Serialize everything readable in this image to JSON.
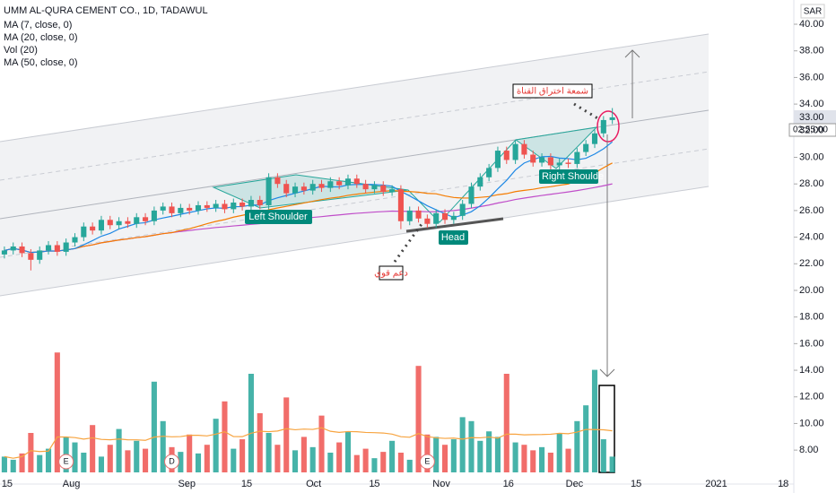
{
  "chart_data": {
    "type": "candlestick",
    "title": "UMM AL-QURA CEMENT CO., 1D, TADAWUL",
    "indicators": [
      "MA (7, close, 0)",
      "MA (20, close, 0)",
      "Vol (20)",
      "MA (50, close, 0)"
    ],
    "currency": "SAR",
    "last_price_label": "33.00",
    "countdown": "02:55:00",
    "annotations": [
      "Left Shoulder",
      "Head",
      "Right Shoulde",
      "شمعة اختراق القناة",
      "دعم قوي"
    ],
    "events": [
      {
        "label": "E",
        "x": 7
      },
      {
        "label": "D",
        "x": 19
      },
      {
        "label": "E",
        "x": 48
      }
    ],
    "up_color": "#26a69a",
    "down_color": "#ef5350",
    "xlim": [
      -0.5,
      89.5
    ],
    "xticks": [
      {
        "value": 0.3,
        "label": "15"
      },
      {
        "value": 7.6,
        "label": "Aug"
      },
      {
        "value": 20.7,
        "label": "Sep"
      },
      {
        "value": 27.5,
        "label": "15"
      },
      {
        "value": 35.1,
        "label": "Oct"
      },
      {
        "value": 42,
        "label": "15"
      },
      {
        "value": 49.6,
        "label": "Nov"
      },
      {
        "value": 57.2,
        "label": "16"
      },
      {
        "value": 64.7,
        "label": "Dec"
      },
      {
        "value": 71.7,
        "label": "15"
      },
      {
        "value": 80.8,
        "label": "2021"
      },
      {
        "value": 88.4,
        "label": "18"
      }
    ],
    "ylim": [
      5.45,
      41.82
    ],
    "yticks": [
      {
        "value": 8,
        "label": "8.00"
      },
      {
        "value": 10,
        "label": "10.00"
      },
      {
        "value": 12,
        "label": "12.00"
      },
      {
        "value": 14,
        "label": "14.00"
      },
      {
        "value": 16,
        "label": "16.00"
      },
      {
        "value": 18,
        "label": "18.00"
      },
      {
        "value": 20,
        "label": "20.00"
      },
      {
        "value": 22,
        "label": "22.00"
      },
      {
        "value": 24,
        "label": "24.00"
      },
      {
        "value": 26,
        "label": "26.00"
      },
      {
        "value": 28,
        "label": "28.00"
      },
      {
        "value": 30,
        "label": "30.00"
      },
      {
        "value": 32,
        "label": "32.00"
      },
      {
        "value": 34,
        "label": "34.00"
      },
      {
        "value": 36,
        "label": "36.00"
      },
      {
        "value": 38,
        "label": "38.00"
      },
      {
        "value": 40,
        "label": "40.00"
      }
    ],
    "open": [
      22.7,
      23.0,
      23.3,
      22.8,
      22.3,
      23.0,
      23.4,
      22.9,
      23.6,
      24.0,
      24.8,
      24.5,
      25.3,
      24.9,
      25.2,
      25.0,
      25.5,
      25.2,
      26.0,
      26.3,
      25.8,
      26.2,
      26.0,
      26.4,
      26.2,
      26.5,
      26.1,
      26.6,
      26.3,
      26.8,
      26.4,
      28.5,
      28.0,
      27.3,
      27.8,
      27.5,
      28.0,
      27.7,
      28.2,
      27.9,
      28.4,
      28.0,
      27.6,
      27.9,
      27.4,
      27.6,
      25.2,
      26.0,
      25.4,
      25.0,
      25.8,
      25.3,
      25.6,
      26.5,
      27.8,
      28.5,
      29.2,
      30.5,
      29.8,
      31.0,
      30.2,
      29.6,
      30.0,
      29.4,
      29.6,
      29.5,
      30.4,
      31.0,
      31.8,
      32.8
    ],
    "high": [
      23.3,
      23.6,
      23.6,
      23.1,
      23.3,
      23.7,
      23.7,
      23.9,
      24.3,
      25.1,
      25.1,
      25.6,
      25.6,
      25.5,
      25.5,
      25.8,
      25.8,
      26.3,
      26.6,
      26.6,
      26.5,
      26.5,
      26.7,
      26.7,
      26.8,
      26.8,
      26.9,
      26.9,
      27.1,
      27.1,
      28.8,
      28.8,
      28.3,
      28.1,
      28.1,
      28.3,
      28.3,
      28.5,
      28.5,
      28.7,
      28.7,
      28.3,
      28.2,
      28.2,
      27.9,
      27.9,
      26.3,
      26.3,
      25.7,
      26.1,
      26.1,
      25.9,
      26.8,
      28.1,
      28.8,
      29.5,
      30.8,
      30.8,
      31.3,
      31.3,
      30.5,
      30.3,
      30.3,
      29.9,
      29.9,
      30.7,
      31.3,
      32.1,
      33.1,
      33.7
    ],
    "low": [
      22.4,
      22.7,
      22.5,
      21.5,
      22.0,
      22.7,
      22.6,
      22.6,
      23.3,
      23.7,
      24.2,
      24.2,
      24.6,
      24.6,
      24.7,
      24.7,
      24.9,
      24.9,
      25.7,
      25.5,
      25.5,
      25.7,
      25.7,
      25.9,
      25.9,
      25.8,
      25.8,
      26.0,
      26.0,
      26.1,
      26.1,
      27.7,
      27.0,
      27.0,
      27.2,
      27.2,
      27.4,
      27.4,
      27.6,
      27.6,
      27.7,
      27.3,
      27.3,
      27.1,
      27.1,
      24.6,
      24.9,
      25.1,
      24.7,
      24.7,
      25.0,
      25.0,
      25.3,
      26.2,
      27.5,
      28.2,
      28.9,
      29.5,
      29.5,
      29.9,
      29.3,
      29.3,
      29.1,
      29.1,
      29.2,
      29.2,
      30.1,
      30.7,
      31.5,
      32.5
    ],
    "close": [
      23.0,
      23.3,
      22.8,
      22.3,
      23.0,
      23.4,
      22.9,
      23.6,
      24.0,
      24.8,
      24.5,
      25.3,
      24.9,
      25.2,
      25.0,
      25.5,
      25.2,
      26.0,
      26.3,
      25.8,
      26.2,
      26.0,
      26.4,
      26.2,
      26.5,
      26.1,
      26.6,
      26.3,
      26.8,
      26.4,
      28.5,
      28.0,
      27.3,
      27.8,
      27.5,
      28.0,
      27.7,
      28.2,
      27.9,
      28.4,
      28.0,
      27.6,
      27.9,
      27.4,
      27.6,
      25.2,
      26.0,
      25.4,
      25.0,
      25.8,
      25.3,
      25.6,
      26.5,
      27.8,
      28.5,
      29.2,
      30.5,
      29.8,
      31.0,
      30.2,
      29.6,
      30.0,
      29.4,
      29.6,
      29.5,
      30.4,
      31.0,
      31.8,
      32.8,
      33.0
    ],
    "volume": [
      2.0,
      1.6,
      2.4,
      5.0,
      2.2,
      3.0,
      15.2,
      4.5,
      3.8,
      2.5,
      6.0,
      2.0,
      3.5,
      5.5,
      2.8,
      4.0,
      3.0,
      11.5,
      6.5,
      3.2,
      2.6,
      4.8,
      2.4,
      3.5,
      6.8,
      9.0,
      3.0,
      4.2,
      12.5,
      7.5,
      5.0,
      3.5,
      9.5,
      2.8,
      4.5,
      3.2,
      7.2,
      2.5,
      3.8,
      5.2,
      2.2,
      3.0,
      1.8,
      2.6,
      4.0,
      2.5,
      1.6,
      13.5,
      4.8,
      4.5,
      3.5,
      4.2,
      7.0,
      6.5,
      4.0,
      5.2,
      4.5,
      12.5,
      3.8,
      3.5,
      2.8,
      3.2,
      2.5,
      5.0,
      3.0,
      6.5,
      8.5,
      13.0,
      4.2,
      2.0
    ]
  }
}
